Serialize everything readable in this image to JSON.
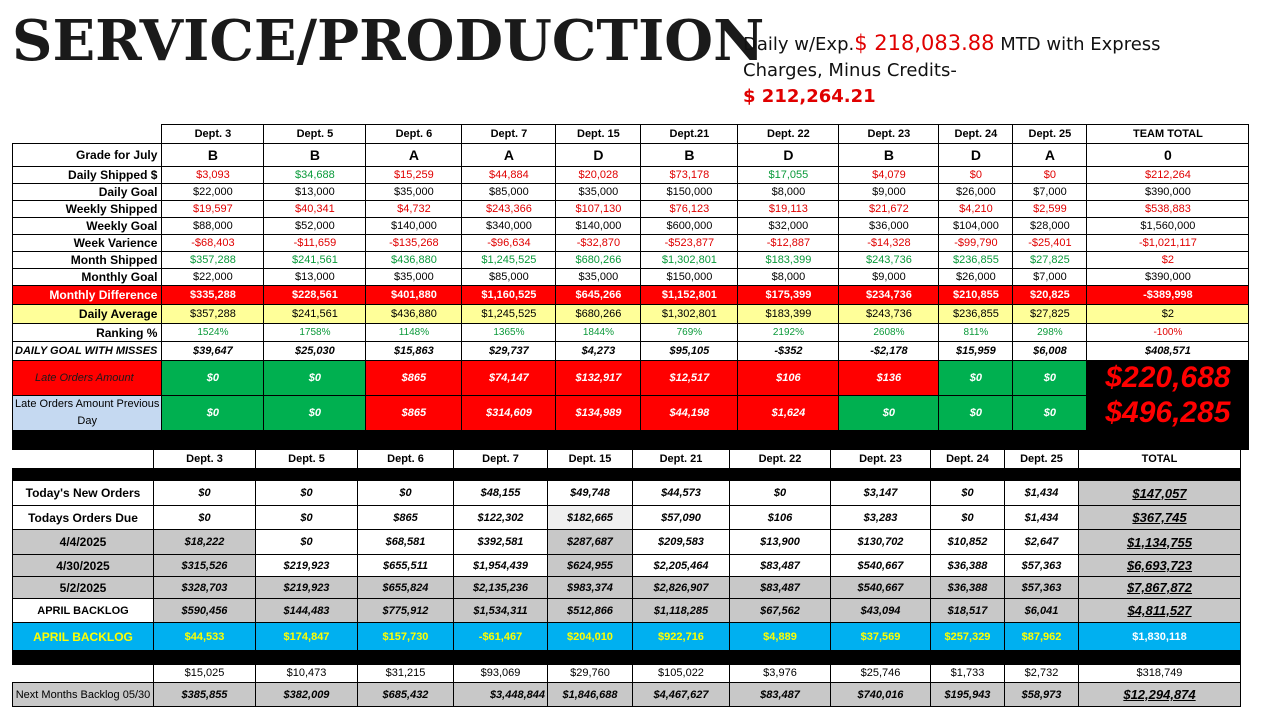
{
  "header": {
    "title": "SERVICE/PRODUCTION",
    "summary_prefix": "Daily w/Exp.",
    "summary_amount1": "$ 218,083.88",
    "summary_mid": " MTD with Express Charges, Minus Credits-",
    "summary_amount2": "$ 212,264.21"
  },
  "colors": {
    "red": "#ff0000",
    "green": "#00b050",
    "yellow": "#ffff99",
    "cyan": "#00b0f0",
    "blue_label": "#c5d9f1"
  },
  "top_table": {
    "columns": [
      "Dept. 3",
      "Dept. 5",
      "Dept. 6",
      "Dept. 7",
      "Dept. 15",
      "Dept.21",
      "Dept. 22",
      "Dept. 23",
      "Dept. 24",
      "Dept. 25",
      "TEAM TOTAL"
    ],
    "grade": {
      "label": "Grade for July",
      "values": [
        "B",
        "B",
        "A",
        "A",
        "D",
        "B",
        "D",
        "B",
        "D",
        "A",
        "0"
      ]
    },
    "daily_shipped": {
      "label": "Daily Shipped $",
      "values": [
        "$3,093",
        "$34,688",
        "$15,259",
        "$44,884",
        "$20,028",
        "$73,178",
        "$17,055",
        "$4,079",
        "$0",
        "$0",
        "$212,264"
      ]
    },
    "daily_goal": {
      "label": "Daily Goal",
      "values": [
        "$22,000",
        "$13,000",
        "$35,000",
        "$85,000",
        "$35,000",
        "$150,000",
        "$8,000",
        "$9,000",
        "$26,000",
        "$7,000",
        "$390,000"
      ]
    },
    "weekly_shipped": {
      "label": "Weekly Shipped",
      "values": [
        "$19,597",
        "$40,341",
        "$4,732",
        "$243,366",
        "$107,130",
        "$76,123",
        "$19,113",
        "$21,672",
        "$4,210",
        "$2,599",
        "$538,883"
      ]
    },
    "weekly_goal": {
      "label": "Weekly Goal",
      "values": [
        "$88,000",
        "$52,000",
        "$140,000",
        "$340,000",
        "$140,000",
        "$600,000",
        "$32,000",
        "$36,000",
        "$104,000",
        "$28,000",
        "$1,560,000"
      ]
    },
    "week_variance": {
      "label": "Week Varience",
      "values": [
        "-$68,403",
        "-$11,659",
        "-$135,268",
        "-$96,634",
        "-$32,870",
        "-$523,877",
        "-$12,887",
        "-$14,328",
        "-$99,790",
        "-$25,401",
        "-$1,021,117"
      ]
    },
    "month_shipped": {
      "label": "Month Shipped",
      "values": [
        "$357,288",
        "$241,561",
        "$436,880",
        "$1,245,525",
        "$680,266",
        "$1,302,801",
        "$183,399",
        "$243,736",
        "$236,855",
        "$27,825",
        "$2"
      ]
    },
    "monthly_goal": {
      "label": "Monthly Goal",
      "values": [
        "$22,000",
        "$13,000",
        "$35,000",
        "$85,000",
        "$35,000",
        "$150,000",
        "$8,000",
        "$9,000",
        "$26,000",
        "$7,000",
        "$390,000"
      ]
    },
    "monthly_difference": {
      "label": "Monthly Difference",
      "values": [
        "$335,288",
        "$228,561",
        "$401,880",
        "$1,160,525",
        "$645,266",
        "$1,152,801",
        "$175,399",
        "$234,736",
        "$210,855",
        "$20,825",
        "-$389,998"
      ]
    },
    "daily_average": {
      "label": "Daily Average",
      "values": [
        "$357,288",
        "$241,561",
        "$436,880",
        "$1,245,525",
        "$680,266",
        "$1,302,801",
        "$183,399",
        "$243,736",
        "$236,855",
        "$27,825",
        "$2"
      ]
    },
    "ranking": {
      "label": "Ranking %",
      "values": [
        "1524%",
        "1758%",
        "1148%",
        "1365%",
        "1844%",
        "769%",
        "2192%",
        "2608%",
        "811%",
        "298%",
        "-100%"
      ]
    },
    "daily_goal_misses": {
      "label": "DAILY GOAL WITH MISSES",
      "values": [
        "$39,647",
        "$25,030",
        "$15,863",
        "$29,737",
        "$4,273",
        "$95,105",
        "-$352",
        "-$2,178",
        "$15,959",
        "$6,008",
        "$408,571"
      ]
    },
    "late_orders": {
      "label": "Late Orders Amount",
      "values": [
        "$0",
        "$0",
        "$865",
        "$74,147",
        "$132,917",
        "$12,517",
        "$106",
        "$136",
        "$0",
        "$0"
      ],
      "total": "$220,688"
    },
    "late_orders_prev": {
      "label": "Late Orders Amount Previous Day",
      "values": [
        "$0",
        "$0",
        "$865",
        "$314,609",
        "$134,989",
        "$44,198",
        "$1,624",
        "$0",
        "$0",
        "$0"
      ],
      "total": "$496,285"
    }
  },
  "backlog_table": {
    "columns": [
      "Dept. 3",
      "Dept. 5",
      "Dept. 6",
      "Dept. 7",
      "Dept. 15",
      "Dept. 21",
      "Dept. 22",
      "Dept. 23",
      "Dept. 24",
      "Dept. 25",
      "TOTAL"
    ],
    "rows": [
      {
        "label": "Today's New Orders",
        "values": [
          "$0",
          "$0",
          "$0",
          "$48,155",
          "$49,748",
          "$44,573",
          "$0",
          "$3,147",
          "$0",
          "$1,434",
          "$147,057"
        ]
      },
      {
        "label": "Todays Orders Due",
        "values": [
          "$0",
          "$0",
          "$865",
          "$122,302",
          "$182,665",
          "$57,090",
          "$106",
          "$3,283",
          "$0",
          "$1,434",
          "$367,745"
        ]
      },
      {
        "label": "4/4/2025",
        "values": [
          "$18,222",
          "$0",
          "$68,581",
          "$392,581",
          "$287,687",
          "$209,583",
          "$13,900",
          "$130,702",
          "$10,852",
          "$2,647",
          "$1,134,755"
        ]
      },
      {
        "label": "4/30/2025",
        "values": [
          "$315,526",
          "$219,923",
          "$655,511",
          "$1,954,439",
          "$624,955",
          "$2,205,464",
          "$83,487",
          "$540,667",
          "$36,388",
          "$57,363",
          "$6,693,723"
        ]
      },
      {
        "label": "5/2/2025",
        "values": [
          "$328,703",
          "$219,923",
          "$655,824",
          "$2,135,236",
          "$983,374",
          "$2,826,907",
          "$83,487",
          "$540,667",
          "$36,388",
          "$57,363",
          "$7,867,872"
        ]
      },
      {
        "label": "APRIL BACKLOG",
        "values": [
          "$590,456",
          "$144,483",
          "$775,912",
          "$1,534,311",
          "$512,866",
          "$1,118,285",
          "$67,562",
          "$43,094",
          "$18,517",
          "$6,041",
          "$4,811,527"
        ]
      },
      {
        "label": "APRIL BACKLOG",
        "values": [
          "$44,533",
          "$174,847",
          "$157,730",
          "-$61,467",
          "$204,010",
          "$922,716",
          "$4,889",
          "$37,569",
          "$257,329",
          "$87,962",
          "$1,830,118"
        ]
      }
    ]
  },
  "next_table": {
    "rows": [
      {
        "label": "",
        "values": [
          "$15,025",
          "$10,473",
          "$31,215",
          "$93,069",
          "$29,760",
          "$105,022",
          "$3,976",
          "$25,746",
          "$1,733",
          "$2,732",
          "$318,749"
        ]
      },
      {
        "label": "Next Months Backlog 05/30",
        "values": [
          "$385,855",
          "$382,009",
          "$685,432",
          "$3,448,844",
          "$1,846,688",
          "$4,467,627",
          "$83,487",
          "$740,016",
          "$195,943",
          "$58,973",
          "$12,294,874"
        ]
      }
    ]
  }
}
